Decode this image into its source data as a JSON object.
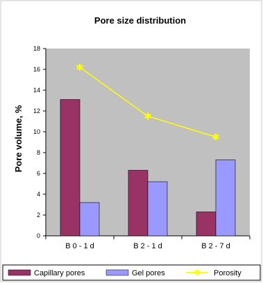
{
  "chart_data": {
    "type": "bar",
    "title": "Pore size distribution",
    "xlabel": "",
    "ylabel": "Pore volume, %",
    "ylim": [
      0,
      18
    ],
    "yticks": [
      0,
      2,
      4,
      6,
      8,
      10,
      12,
      14,
      16,
      18
    ],
    "categories": [
      "B 0 - 1 d",
      "B 2 - 1 d",
      "B 2 - 7 d"
    ],
    "grid": false,
    "legend_position": "bottom",
    "series": [
      {
        "name": "Capillary pores",
        "kind": "bar",
        "color": "#993366",
        "values": [
          13.1,
          6.3,
          2.3
        ]
      },
      {
        "name": "Gel pores",
        "kind": "bar",
        "color": "#9999FF",
        "values": [
          3.2,
          5.2,
          7.3
        ]
      },
      {
        "name": "Porosity",
        "kind": "line",
        "color": "#FFFF00",
        "values": [
          16.2,
          11.5,
          9.5
        ]
      }
    ],
    "plot_background": "#C0C0C0"
  }
}
